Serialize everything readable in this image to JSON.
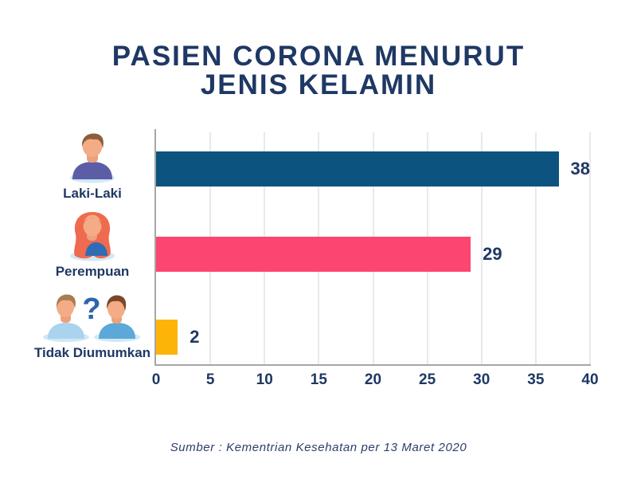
{
  "title": {
    "line1": "PASIEN CORONA MENURUT",
    "line2": "JENIS KELAMIN"
  },
  "source": "Sumber : Kementrian Kesehatan per 13 Maret 2020",
  "chart_data": {
    "type": "bar",
    "orientation": "horizontal",
    "title": "PASIEN CORONA MENURUT JENIS KELAMIN",
    "categories": [
      "Laki-Laki",
      "Perempuan",
      "Tidak Diumumkan"
    ],
    "values": [
      38,
      29,
      2
    ],
    "bar_colors": [
      "#0d537f",
      "#fc4570",
      "#fdb408"
    ],
    "xlim": [
      0,
      40
    ],
    "x_ticks": [
      0,
      5,
      10,
      15,
      20,
      25,
      30,
      35,
      40
    ],
    "grid": true,
    "grid_color": "#e9e9e9",
    "axis_color": "#a6a6a6",
    "value_label_color": "#1f3864"
  },
  "icons": {
    "male_avatar": "male-avatar-icon",
    "female_avatar": "female-avatar-icon",
    "unknown_gender_avatar": "unknown-gender-avatar-icon",
    "question_mark": "?"
  },
  "colors": {
    "title_text": "#1f3864",
    "source_text": "#2d3e6c",
    "avatar_base": "#cfe9f6",
    "skin": "#f4ac86"
  }
}
